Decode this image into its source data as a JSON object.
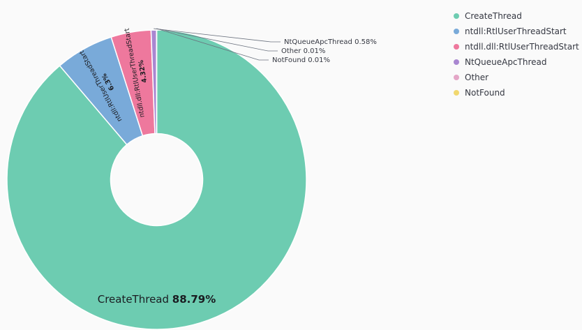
{
  "chart_data": {
    "type": "pie",
    "donut": true,
    "legend_position": "top-right",
    "slices": [
      {
        "label": "CreateThread",
        "value": 88.79,
        "pct_text": "88.79%",
        "color": "#6dccb1"
      },
      {
        "label": "ntdll:RtlUserThreadStart",
        "value": 6.3,
        "pct_text": "6.3%",
        "color": "#79aad9"
      },
      {
        "label": "ntdll.dll:RtlUserThreadStart",
        "value": 4.32,
        "pct_text": "4.32%",
        "color": "#ee789d"
      },
      {
        "label": "NtQueueApcThread",
        "value": 0.58,
        "pct_text": "0.58%",
        "color": "#a987d1"
      },
      {
        "label": "Other",
        "value": 0.01,
        "pct_text": "0.01%",
        "color": "#e4a6c7"
      },
      {
        "label": "NotFound",
        "value": 0.01,
        "pct_text": "0.01%",
        "color": "#f1d86f"
      }
    ]
  },
  "legend": {
    "items": [
      {
        "label": "CreateThread",
        "color": "#6dccb1"
      },
      {
        "label": "ntdll:RtlUserThreadStart",
        "color": "#79aad9"
      },
      {
        "label": "ntdll.dll:RtlUserThreadStart",
        "color": "#ee789d"
      },
      {
        "label": "NtQueueApcThread",
        "color": "#a987d1"
      },
      {
        "label": "Other",
        "color": "#e4a6c7"
      },
      {
        "label": "NotFound",
        "color": "#f1d86f"
      }
    ]
  }
}
